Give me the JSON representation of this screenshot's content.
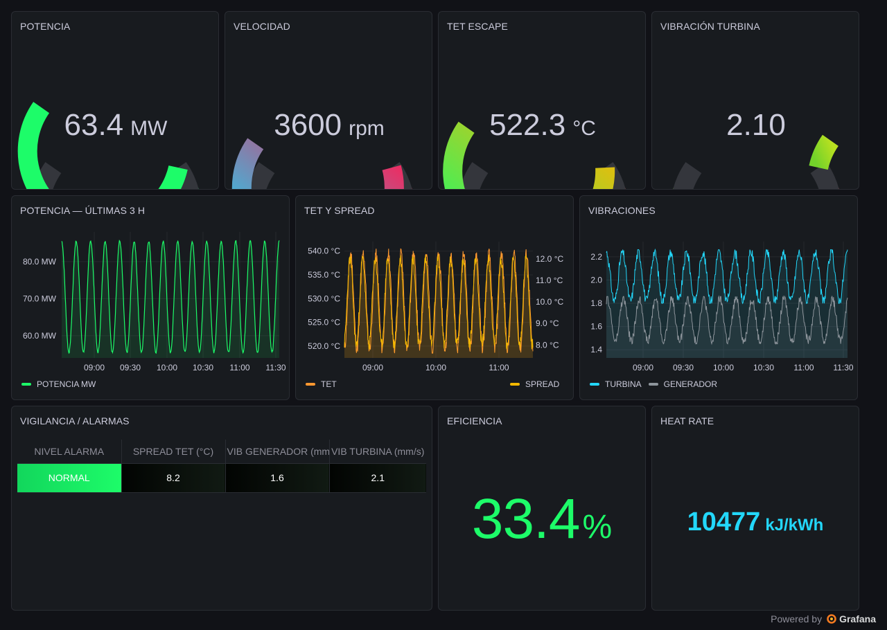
{
  "colors": {
    "green": "#1dfc69",
    "orange": "#ff9830",
    "yellow": "#f2b800",
    "cyan": "#23d7fa",
    "grey": "#8e959c",
    "red": "#f2495c",
    "track": "#34363c"
  },
  "gauges": [
    {
      "title": "POTENCIA",
      "value": "63.4",
      "unit": "MW",
      "fraction": 0.81,
      "colors": [
        "#1dfc69",
        "#1dfc69"
      ]
    },
    {
      "title": "VELOCIDAD",
      "value": "3600",
      "unit": "rpm",
      "fraction": 0.92,
      "colors": [
        "#0be0ff",
        "#ff1e56"
      ]
    },
    {
      "title": "TET ESCAPE",
      "value": "522.3",
      "unit": "°C",
      "fraction": 0.87,
      "colors": [
        "#1dfc69",
        "#ffb400"
      ]
    },
    {
      "title": "VIBRACIÓN TURBINA",
      "value": "2.10",
      "unit": "",
      "fraction": 0.09,
      "colors": [
        "#73d22a",
        "#b8e020"
      ]
    }
  ],
  "power_panel": {
    "title": "POTENCIA — ÚLTIMAS 3 H",
    "legend": "POTENCIA MW"
  },
  "tet_panel": {
    "title": "TET Y SPREAD",
    "legend_left": "TET",
    "legend_right": "SPREAD"
  },
  "vib_panel": {
    "title": "VIBRACIONES",
    "legend": [
      "TURBINA",
      "GENERADOR"
    ]
  },
  "chart_data": [
    {
      "type": "line",
      "title": "POTENCIA — ÚLTIMAS 3 H",
      "x_ticks": [
        "09:00",
        "09:30",
        "10:00",
        "10:30",
        "11:00",
        "11:30"
      ],
      "y_ticks": [
        "60.0 MW",
        "70.0 MW",
        "80.0 MW"
      ],
      "ylim": [
        54,
        88
      ],
      "x_range": [
        "08:40",
        "11:33"
      ],
      "series": [
        {
          "name": "POTENCIA MW",
          "min": 55.5,
          "max": 85.5,
          "cycles": 15,
          "color": "#1dfc69"
        }
      ]
    },
    {
      "type": "line",
      "title": "TET Y SPREAD",
      "x_ticks": [
        "09:00",
        "10:00",
        "11:00"
      ],
      "y_ticks_left": [
        "520.0 °C",
        "525.0 °C",
        "530.0 °C",
        "535.0 °C",
        "540.0 °C"
      ],
      "y_ticks_right": [
        "8.0 °C",
        "9.0 °C",
        "10.0 °C",
        "11.0 °C",
        "12.0 °C"
      ],
      "ylim_left": [
        517.5,
        542
      ],
      "ylim_right": [
        7.4,
        12.8
      ],
      "x_range": [
        "08:33",
        "11:33"
      ],
      "series": [
        {
          "name": "TET",
          "min": 519.5,
          "max": 539.5,
          "cycles": 15,
          "color": "#ff9830"
        },
        {
          "name": "SPREAD",
          "min": 8.0,
          "max": 12.0,
          "cycles": 15,
          "color": "#f2b800"
        }
      ]
    },
    {
      "type": "line",
      "title": "VIBRACIONES",
      "x_ticks": [
        "09:00",
        "09:30",
        "10:00",
        "10:30",
        "11:00",
        "11:30"
      ],
      "y_ticks": [
        "1.4",
        "1.6",
        "1.8",
        "2.0",
        "2.2"
      ],
      "ylim": [
        1.33,
        2.33
      ],
      "x_range": [
        "08:33",
        "11:33"
      ],
      "series": [
        {
          "name": "TURBINA",
          "min": 1.82,
          "max": 2.24,
          "cycles": 15,
          "color": "#23d7fa"
        },
        {
          "name": "GENERADOR",
          "min": 1.47,
          "max": 1.84,
          "cycles": 15,
          "color": "#8e959c"
        }
      ]
    }
  ],
  "alarms": {
    "title": "VIGILANCIA / ALARMAS",
    "headers": [
      "NIVEL ALARMA",
      "SPREAD TET (°C)",
      "VIB GENERADOR (mm/s)",
      "VIB TURBINA (mm/s)"
    ],
    "row": [
      "NORMAL",
      "8.2",
      "1.6",
      "2.1"
    ]
  },
  "efficiency": {
    "title": "EFICIENCIA",
    "value": "33.4",
    "unit": "%"
  },
  "heat_rate": {
    "title": "HEAT RATE",
    "value": "10477",
    "unit": "kJ/kWh"
  },
  "footer": {
    "text": "Powered by",
    "brand": "Grafana"
  }
}
